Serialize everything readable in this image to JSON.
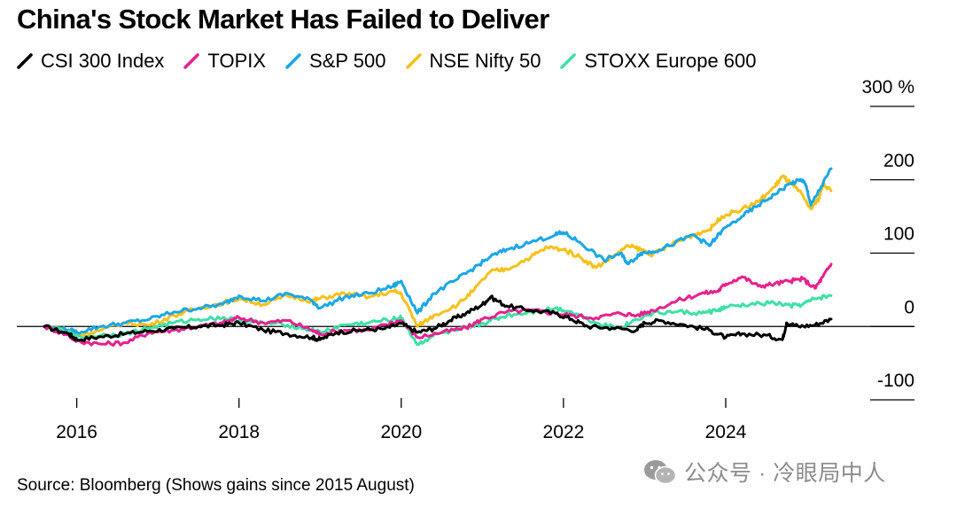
{
  "chart_data": {
    "type": "line",
    "title": "China's Stock Market Has Failed to Deliver",
    "source": "Source: Bloomberg (Shows gains since 2015 August)",
    "x_start_year": 2015.6,
    "x_end_year": 2025.3,
    "x_ticks": [
      2016,
      2018,
      2020,
      2022,
      2024
    ],
    "x_tick_labels": [
      "2016",
      "2018",
      "2020",
      "2022",
      "2024"
    ],
    "ylim": [
      -100,
      300
    ],
    "y_ticks": [
      300,
      200,
      100,
      0,
      -100
    ],
    "y_tick_labels": [
      "300 %",
      "200",
      "100",
      "0",
      "-100"
    ],
    "grid": false,
    "legend_position": "top-left",
    "series": [
      {
        "name": "CSI 300 Index",
        "color": "#000000",
        "points": [
          [
            2015.6,
            0
          ],
          [
            2015.9,
            -10
          ],
          [
            2016.0,
            -18
          ],
          [
            2016.3,
            -14
          ],
          [
            2016.6,
            -10
          ],
          [
            2016.9,
            -6
          ],
          [
            2017.2,
            -3
          ],
          [
            2017.5,
            0
          ],
          [
            2017.8,
            2
          ],
          [
            2018.0,
            5
          ],
          [
            2018.3,
            -5
          ],
          [
            2018.6,
            -10
          ],
          [
            2018.9,
            -15
          ],
          [
            2019.0,
            -18
          ],
          [
            2019.2,
            -8
          ],
          [
            2019.5,
            -5
          ],
          [
            2019.8,
            -3
          ],
          [
            2020.0,
            4
          ],
          [
            2020.2,
            -8
          ],
          [
            2020.4,
            -3
          ],
          [
            2020.6,
            8
          ],
          [
            2020.8,
            18
          ],
          [
            2021.0,
            30
          ],
          [
            2021.1,
            40
          ],
          [
            2021.3,
            28
          ],
          [
            2021.6,
            22
          ],
          [
            2021.9,
            18
          ],
          [
            2022.1,
            10
          ],
          [
            2022.3,
            0
          ],
          [
            2022.6,
            -2
          ],
          [
            2022.9,
            -5
          ],
          [
            2023.0,
            5
          ],
          [
            2023.2,
            8
          ],
          [
            2023.5,
            2
          ],
          [
            2023.8,
            -5
          ],
          [
            2024.0,
            -15
          ],
          [
            2024.2,
            -10
          ],
          [
            2024.5,
            -12
          ],
          [
            2024.7,
            -18
          ],
          [
            2024.75,
            5
          ],
          [
            2024.9,
            0
          ],
          [
            2025.1,
            2
          ],
          [
            2025.3,
            10
          ]
        ]
      },
      {
        "name": "TOPIX",
        "color": "#e6218f",
        "points": [
          [
            2015.6,
            0
          ],
          [
            2015.9,
            -12
          ],
          [
            2016.0,
            -20
          ],
          [
            2016.3,
            -24
          ],
          [
            2016.6,
            -22
          ],
          [
            2016.9,
            -8
          ],
          [
            2017.2,
            -5
          ],
          [
            2017.5,
            0
          ],
          [
            2017.8,
            5
          ],
          [
            2018.0,
            12
          ],
          [
            2018.3,
            5
          ],
          [
            2018.6,
            8
          ],
          [
            2018.9,
            -5
          ],
          [
            2019.0,
            -10
          ],
          [
            2019.3,
            -5
          ],
          [
            2019.6,
            -5
          ],
          [
            2019.9,
            5
          ],
          [
            2020.0,
            8
          ],
          [
            2020.2,
            -15
          ],
          [
            2020.5,
            -8
          ],
          [
            2020.8,
            -2
          ],
          [
            2021.0,
            10
          ],
          [
            2021.3,
            20
          ],
          [
            2021.6,
            22
          ],
          [
            2021.9,
            18
          ],
          [
            2022.1,
            15
          ],
          [
            2022.4,
            12
          ],
          [
            2022.7,
            18
          ],
          [
            2022.9,
            15
          ],
          [
            2023.1,
            22
          ],
          [
            2023.4,
            35
          ],
          [
            2023.7,
            45
          ],
          [
            2023.9,
            48
          ],
          [
            2024.0,
            58
          ],
          [
            2024.2,
            68
          ],
          [
            2024.4,
            55
          ],
          [
            2024.6,
            58
          ],
          [
            2024.8,
            62
          ],
          [
            2024.95,
            65
          ],
          [
            2025.1,
            52
          ],
          [
            2025.2,
            68
          ],
          [
            2025.3,
            85
          ]
        ]
      },
      {
        "name": "S&P 500",
        "color": "#1ba7e6",
        "points": [
          [
            2015.6,
            0
          ],
          [
            2015.9,
            -5
          ],
          [
            2016.0,
            -8
          ],
          [
            2016.3,
            0
          ],
          [
            2016.6,
            5
          ],
          [
            2016.9,
            10
          ],
          [
            2017.2,
            20
          ],
          [
            2017.5,
            25
          ],
          [
            2017.8,
            30
          ],
          [
            2018.0,
            42
          ],
          [
            2018.3,
            35
          ],
          [
            2018.6,
            45
          ],
          [
            2018.9,
            35
          ],
          [
            2019.0,
            25
          ],
          [
            2019.3,
            40
          ],
          [
            2019.6,
            45
          ],
          [
            2019.9,
            55
          ],
          [
            2020.0,
            62
          ],
          [
            2020.2,
            18
          ],
          [
            2020.4,
            45
          ],
          [
            2020.7,
            65
          ],
          [
            2020.9,
            80
          ],
          [
            2021.1,
            95
          ],
          [
            2021.3,
            105
          ],
          [
            2021.6,
            115
          ],
          [
            2021.9,
            125
          ],
          [
            2022.0,
            128
          ],
          [
            2022.2,
            115
          ],
          [
            2022.5,
            90
          ],
          [
            2022.7,
            100
          ],
          [
            2022.8,
            85
          ],
          [
            2022.95,
            100
          ],
          [
            2023.1,
            102
          ],
          [
            2023.3,
            110
          ],
          [
            2023.6,
            125
          ],
          [
            2023.8,
            110
          ],
          [
            2023.95,
            130
          ],
          [
            2024.2,
            150
          ],
          [
            2024.4,
            165
          ],
          [
            2024.6,
            180
          ],
          [
            2024.8,
            195
          ],
          [
            2024.95,
            200
          ],
          [
            2025.0,
            188
          ],
          [
            2025.05,
            165
          ],
          [
            2025.15,
            185
          ],
          [
            2025.3,
            215
          ]
        ]
      },
      {
        "name": "NSE Nifty 50",
        "color": "#f5c11a",
        "points": [
          [
            2015.6,
            0
          ],
          [
            2015.9,
            -5
          ],
          [
            2016.0,
            -12
          ],
          [
            2016.3,
            -5
          ],
          [
            2016.6,
            5
          ],
          [
            2016.9,
            2
          ],
          [
            2017.2,
            15
          ],
          [
            2017.5,
            25
          ],
          [
            2017.8,
            32
          ],
          [
            2018.0,
            38
          ],
          [
            2018.3,
            30
          ],
          [
            2018.6,
            42
          ],
          [
            2018.9,
            35
          ],
          [
            2019.0,
            38
          ],
          [
            2019.3,
            45
          ],
          [
            2019.6,
            40
          ],
          [
            2019.9,
            48
          ],
          [
            2020.0,
            45
          ],
          [
            2020.2,
            0
          ],
          [
            2020.4,
            15
          ],
          [
            2020.7,
            30
          ],
          [
            2020.9,
            50
          ],
          [
            2021.1,
            75
          ],
          [
            2021.3,
            78
          ],
          [
            2021.6,
            95
          ],
          [
            2021.8,
            108
          ],
          [
            2022.0,
            105
          ],
          [
            2022.2,
            95
          ],
          [
            2022.4,
            80
          ],
          [
            2022.6,
            95
          ],
          [
            2022.8,
            110
          ],
          [
            2022.95,
            105
          ],
          [
            2023.1,
            98
          ],
          [
            2023.3,
            110
          ],
          [
            2023.6,
            125
          ],
          [
            2023.8,
            132
          ],
          [
            2023.95,
            150
          ],
          [
            2024.2,
            160
          ],
          [
            2024.4,
            170
          ],
          [
            2024.6,
            190
          ],
          [
            2024.7,
            205
          ],
          [
            2024.8,
            195
          ],
          [
            2024.9,
            185
          ],
          [
            2025.05,
            160
          ],
          [
            2025.15,
            175
          ],
          [
            2025.2,
            195
          ],
          [
            2025.3,
            185
          ]
        ]
      },
      {
        "name": "STOXX Europe 600",
        "color": "#3fe0a4",
        "points": [
          [
            2015.6,
            0
          ],
          [
            2015.9,
            -8
          ],
          [
            2016.0,
            -15
          ],
          [
            2016.3,
            -12
          ],
          [
            2016.6,
            -10
          ],
          [
            2016.9,
            -2
          ],
          [
            2017.2,
            5
          ],
          [
            2017.5,
            10
          ],
          [
            2017.8,
            12
          ],
          [
            2018.0,
            8
          ],
          [
            2018.3,
            5
          ],
          [
            2018.6,
            2
          ],
          [
            2018.9,
            -5
          ],
          [
            2019.0,
            -8
          ],
          [
            2019.3,
            2
          ],
          [
            2019.6,
            5
          ],
          [
            2019.9,
            10
          ],
          [
            2020.0,
            12
          ],
          [
            2020.2,
            -25
          ],
          [
            2020.4,
            -12
          ],
          [
            2020.7,
            -5
          ],
          [
            2020.9,
            0
          ],
          [
            2021.1,
            8
          ],
          [
            2021.3,
            15
          ],
          [
            2021.6,
            20
          ],
          [
            2021.9,
            25
          ],
          [
            2022.1,
            20
          ],
          [
            2022.4,
            5
          ],
          [
            2022.7,
            -2
          ],
          [
            2022.9,
            10
          ],
          [
            2023.1,
            18
          ],
          [
            2023.4,
            20
          ],
          [
            2023.7,
            18
          ],
          [
            2023.9,
            22
          ],
          [
            2024.0,
            26
          ],
          [
            2024.3,
            30
          ],
          [
            2024.6,
            32
          ],
          [
            2024.8,
            28
          ],
          [
            2024.95,
            30
          ],
          [
            2025.1,
            38
          ],
          [
            2025.3,
            42
          ]
        ]
      }
    ]
  },
  "watermark": "公众号 · 冷眼局中人"
}
